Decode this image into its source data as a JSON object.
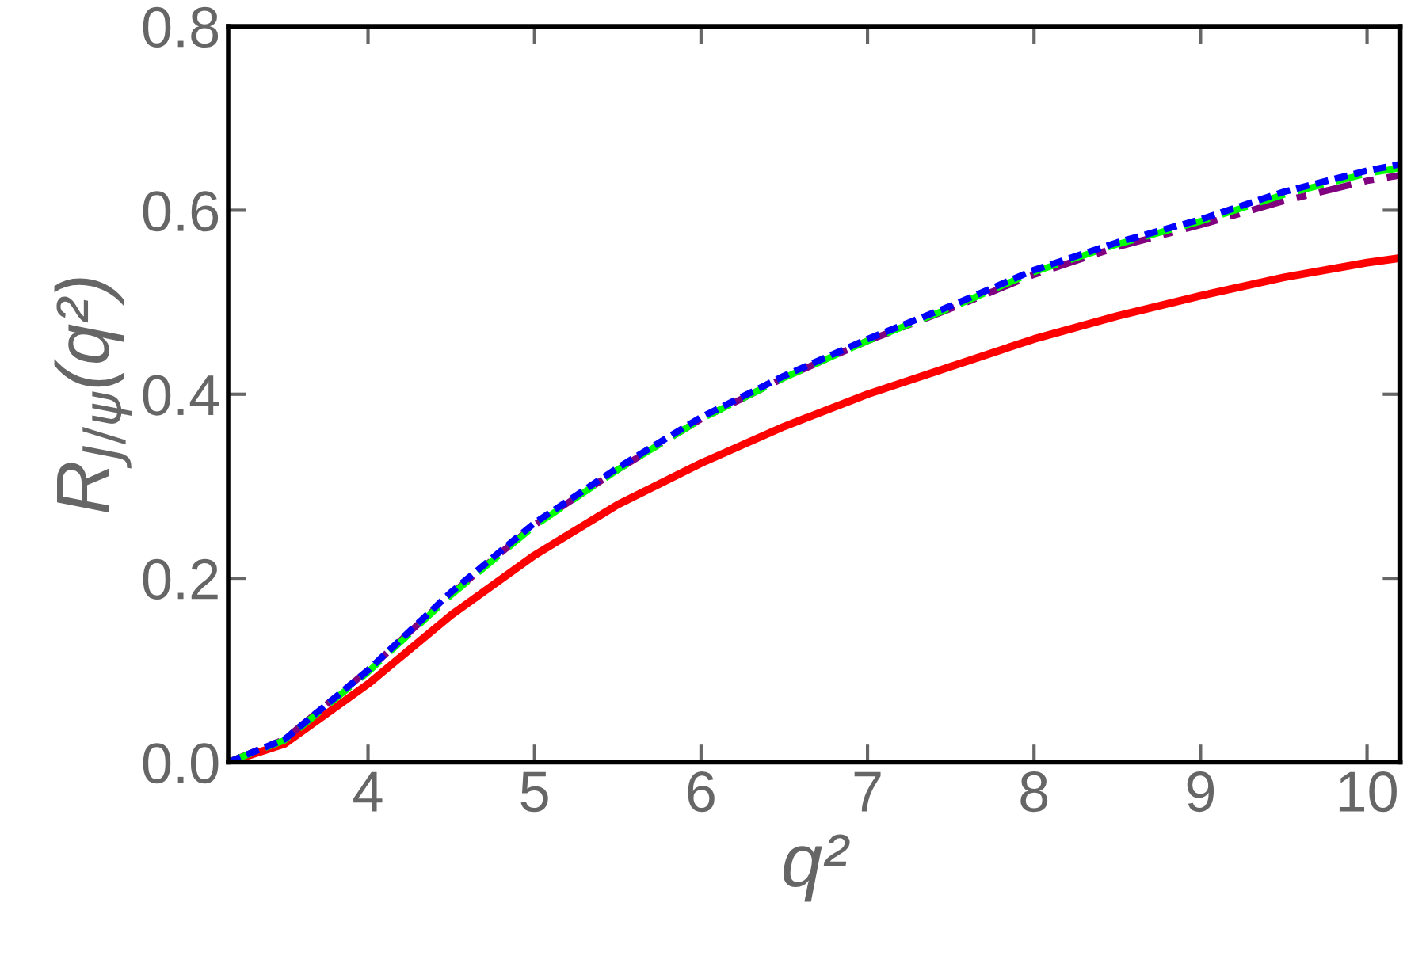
{
  "chart_data": {
    "type": "line",
    "xlabel": "q²",
    "ylabel": "R$_{J/ψ}$(q²)",
    "xlim": [
      3.16,
      10.2
    ],
    "ylim": [
      0,
      0.8
    ],
    "xticks": [
      4,
      5,
      6,
      7,
      8,
      9,
      10
    ],
    "yticks": [
      {
        "value": 0,
        "label": "0.0"
      },
      0.2,
      0.4,
      0.6,
      0.8
    ],
    "grid": false,
    "legend": false,
    "x": [
      3.16,
      3.5,
      4,
      4.5,
      5,
      5.5,
      6,
      6.5,
      7,
      7.5,
      8,
      8.5,
      9,
      9.5,
      10,
      10.2
    ],
    "series": [
      {
        "color": "#ff0000",
        "line_style": "solid",
        "values": [
          0,
          0.02,
          0.085,
          0.16,
          0.225,
          0.28,
          0.325,
          0.365,
          0.4,
          0.43,
          0.46,
          0.485,
          0.507,
          0.527,
          0.543,
          0.548
        ]
      },
      {
        "color": "#800080",
        "line_style": "dashdot",
        "values": [
          0,
          0.025,
          0.1,
          0.183,
          0.258,
          0.318,
          0.373,
          0.418,
          0.458,
          0.493,
          0.53,
          0.56,
          0.584,
          0.61,
          0.632,
          0.638
        ]
      },
      {
        "color": "#00ff00",
        "line_style": "dashed",
        "values": [
          0,
          0.024,
          0.098,
          0.182,
          0.257,
          0.318,
          0.373,
          0.418,
          0.458,
          0.494,
          0.533,
          0.563,
          0.588,
          0.617,
          0.64,
          0.646
        ]
      },
      {
        "color": "#0000ff",
        "line_style": "dotted",
        "values": [
          0,
          0.025,
          0.1,
          0.185,
          0.26,
          0.32,
          0.375,
          0.42,
          0.46,
          0.496,
          0.535,
          0.565,
          0.59,
          0.62,
          0.643,
          0.65
        ]
      }
    ]
  }
}
